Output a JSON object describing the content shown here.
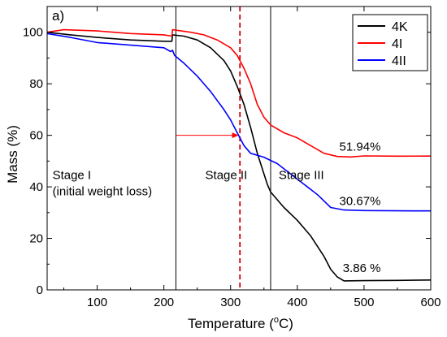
{
  "chart_data": {
    "type": "line",
    "panel_label": "a)",
    "xlabel": "Temperature (°C)",
    "xlabel_parts": {
      "main": "Temperature (",
      "sup": "o",
      "tail": "C)"
    },
    "ylabel": "Mass (%)",
    "xlim": [
      25,
      600
    ],
    "ylim": [
      0,
      110
    ],
    "xticks": [
      "100",
      "200",
      "300",
      "400",
      "500",
      "600"
    ],
    "yticks": [
      "0",
      "20",
      "40",
      "60",
      "80",
      "100"
    ],
    "grid": false,
    "legend_position": "top-right",
    "series": [
      {
        "name": "4K",
        "color": "#000000",
        "x": [
          25,
          60,
          100,
          150,
          200,
          212,
          213,
          230,
          250,
          270,
          290,
          300,
          310,
          320,
          330,
          340,
          350,
          355,
          360,
          370,
          380,
          400,
          420,
          440,
          450,
          460,
          470,
          500,
          550,
          600
        ],
        "y": [
          100,
          99,
          98,
          97,
          96.5,
          96.5,
          99,
          98.5,
          97,
          94,
          89,
          85,
          79,
          72,
          63,
          53,
          45,
          41,
          38,
          35,
          32,
          27,
          21,
          13,
          8,
          5,
          3.5,
          3.6,
          3.7,
          3.86
        ]
      },
      {
        "name": "4I",
        "color": "#ff0000",
        "x": [
          25,
          50,
          100,
          150,
          200,
          212,
          213,
          240,
          260,
          280,
          300,
          310,
          320,
          330,
          340,
          350,
          360,
          380,
          400,
          420,
          440,
          460,
          480,
          500,
          550,
          600
        ],
        "y": [
          100,
          101,
          100.5,
          99.5,
          99,
          98.5,
          101,
          100,
          99,
          97,
          94,
          91,
          86,
          80,
          72,
          67,
          64,
          61,
          59,
          56,
          53,
          51.8,
          51.6,
          52,
          51.9,
          51.94
        ]
      },
      {
        "name": "4II",
        "color": "#0000ff",
        "x": [
          25,
          60,
          100,
          150,
          200,
          210,
          213,
          216,
          230,
          250,
          270,
          290,
          300,
          310,
          320,
          330,
          350,
          370,
          390,
          410,
          430,
          450,
          470,
          500,
          550,
          600
        ],
        "y": [
          99.5,
          98,
          96,
          95,
          94,
          92.5,
          93,
          91,
          88,
          83,
          77,
          70,
          66,
          61,
          56,
          53,
          51.5,
          49,
          45,
          41,
          37,
          32,
          31,
          30.8,
          30.7,
          30.67
        ]
      }
    ],
    "vlines": [
      {
        "x": 218,
        "style": "solid",
        "color": "#000000"
      },
      {
        "x": 314,
        "style": "dashed",
        "color": "#d00000"
      },
      {
        "x": 360,
        "style": "solid",
        "color": "#000000"
      }
    ],
    "arrow": {
      "x_from": 218,
      "x_to": 312,
      "y": 60,
      "color": "#ff0000"
    },
    "annotations": [
      {
        "id": "stage1",
        "lines": [
          "Stage I",
          "(initial weight loss)"
        ],
        "x": 33,
        "y": 43
      },
      {
        "id": "stage2",
        "lines": [
          "Stage II"
        ],
        "x": 262,
        "y": 43
      },
      {
        "id": "stage3",
        "lines": [
          "Stage III"
        ],
        "x": 372,
        "y": 43
      },
      {
        "id": "label-4I",
        "lines": [
          "51.94%"
        ],
        "x": 525,
        "y": 54
      },
      {
        "id": "label-4II",
        "lines": [
          "30.67%"
        ],
        "x": 525,
        "y": 33
      },
      {
        "id": "label-4K",
        "lines": [
          "3.86 %"
        ],
        "x": 525,
        "y": 7
      }
    ]
  }
}
